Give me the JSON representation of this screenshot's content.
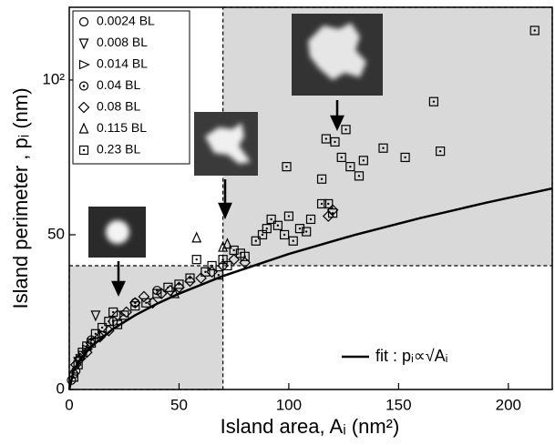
{
  "chart_data": {
    "type": "scatter",
    "x_label": "Island area, Aᵢ (nm²)",
    "y_label": "Island perimeter , pᵢ (nm)",
    "xlim": [
      0,
      220
    ],
    "xticks": [
      0,
      50,
      100,
      150,
      200
    ],
    "ylim": [
      0,
      123.5
    ],
    "yticks": [
      0,
      50,
      {
        "value": 100,
        "label": "10²"
      }
    ],
    "regions": [
      {
        "x": [
          0,
          70
        ],
        "y": [
          0,
          40
        ]
      },
      {
        "x": [
          70,
          220
        ],
        "y": [
          40,
          123.5
        ]
      }
    ],
    "region_color": "#d9d9d9",
    "series": [
      {
        "name": "0.0024 BL",
        "marker": "circle",
        "color": "#000000",
        "x": [
          1,
          2,
          3
        ],
        "y": [
          3,
          5,
          6
        ]
      },
      {
        "name": "0.008 BL",
        "marker": "triangle-down",
        "color": "#000000",
        "x": [
          4,
          6,
          12
        ],
        "y": [
          9,
          11,
          24
        ]
      },
      {
        "name": "0.014 BL",
        "marker": "triangle-right",
        "color": "#000000",
        "x": [
          5,
          8,
          15
        ],
        "y": [
          10,
          13,
          18
        ]
      },
      {
        "name": "0.04 BL",
        "marker": "circle-dot",
        "color": "#000000",
        "x": [
          10,
          20,
          30,
          40
        ],
        "y": [
          16,
          22,
          28,
          32
        ]
      },
      {
        "name": "0.08 BL",
        "marker": "diamond",
        "color": "#000000",
        "x": [
          3,
          5,
          8,
          10,
          14,
          18,
          22,
          26,
          30,
          34,
          38,
          42,
          46,
          50,
          55,
          60,
          65,
          70,
          75,
          80,
          118,
          120
        ],
        "y": [
          8,
          10,
          12,
          15,
          17,
          19,
          24,
          25,
          28,
          30,
          28,
          31,
          32,
          33,
          35,
          36,
          38,
          40,
          42,
          41,
          56,
          58
        ]
      },
      {
        "name": "0.115 BL",
        "marker": "triangle-up",
        "color": "#000000",
        "x": [
          58,
          70,
          72,
          48
        ],
        "y": [
          49,
          46,
          47,
          31
        ]
      },
      {
        "name": "0.23 BL",
        "marker": "square-dot",
        "color": "#000000",
        "x": [
          2,
          4,
          6,
          8,
          10,
          12,
          15,
          18,
          20,
          22,
          25,
          30,
          35,
          40,
          45,
          50,
          55,
          58,
          62,
          65,
          68,
          70,
          72,
          75,
          78,
          80,
          85,
          88,
          90,
          92,
          95,
          98,
          100,
          102,
          105,
          108,
          110,
          115,
          118,
          120,
          99,
          115,
          117,
          121,
          124,
          126,
          128,
          132,
          134,
          143,
          153,
          166,
          169,
          212
        ],
        "y": [
          4,
          8,
          12,
          14,
          15,
          18,
          20,
          22,
          25,
          21,
          24,
          27,
          28,
          31,
          33,
          34,
          36,
          42,
          38,
          40,
          37,
          42,
          40,
          45,
          44,
          43,
          48,
          50,
          52,
          55,
          53,
          50,
          56,
          48,
          52,
          51,
          55,
          60,
          60,
          57,
          72,
          68,
          81,
          80,
          75,
          84,
          72,
          69,
          74,
          78,
          75,
          93,
          77,
          116
        ]
      }
    ],
    "fit": {
      "name": "fit : pᵢ∝√Aᵢ",
      "color": "#000000",
      "x": [
        0,
        2,
        5,
        10,
        20,
        30,
        40,
        50,
        70,
        100,
        130,
        160,
        190,
        220
      ],
      "y": [
        0,
        6.19,
        9.79,
        13.85,
        19.59,
        23.99,
        27.7,
        30.97,
        36.65,
        43.8,
        49.94,
        55.4,
        60.37,
        64.96
      ]
    }
  }
}
